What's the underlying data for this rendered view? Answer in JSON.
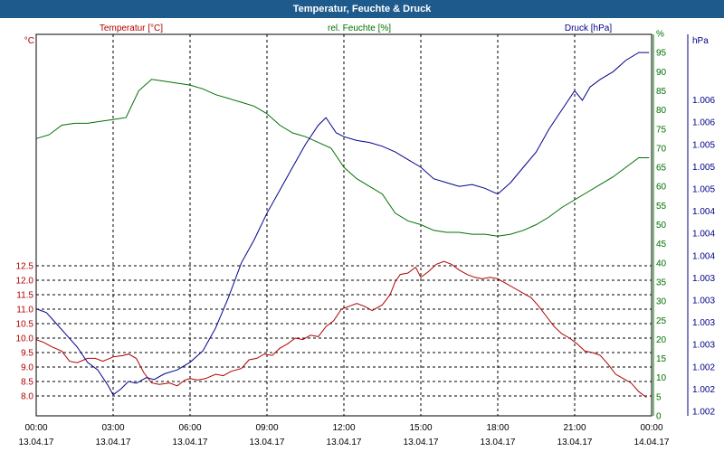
{
  "window": {
    "title": "Temperatur, Feuchte & Druck"
  },
  "colors": {
    "temperature": "#b00000",
    "humidity": "#007000",
    "pressure": "#00008b",
    "grid": "#000000"
  },
  "chart_data": {
    "type": "line",
    "title": "Temperatur, Feuchte & Druck",
    "grid": true,
    "x_ticks": [
      {
        "time": "00:00",
        "date": "13.04.17"
      },
      {
        "time": "03:00",
        "date": "13.04.17"
      },
      {
        "time": "06:00",
        "date": "13.04.17"
      },
      {
        "time": "09:00",
        "date": "13.04.17"
      },
      {
        "time": "12:00",
        "date": "13.04.17"
      },
      {
        "time": "15:00",
        "date": "13.04.17"
      },
      {
        "time": "18:00",
        "date": "13.04.17"
      },
      {
        "time": "21:00",
        "date": "13.04.17"
      },
      {
        "time": "00:00",
        "date": "14.04.17"
      }
    ],
    "xlim_hours": [
      0,
      24
    ],
    "axes": {
      "temperature": {
        "label": "Temperatur [°C]",
        "unit": "°C",
        "ylim": [
          7.75,
          12.95
        ],
        "ticks": [
          "8.0",
          "8.5",
          "9.0",
          "9.5",
          "10.0",
          "10.5",
          "11.0",
          "11.5",
          "12.0",
          "12.5"
        ]
      },
      "humidity": {
        "label": "rel. Feuchte [%]",
        "unit": "%",
        "ylim": [
          0,
          96
        ],
        "ticks": [
          "0",
          "5",
          "10",
          "15",
          "20",
          "25",
          "30",
          "35",
          "40",
          "45",
          "50",
          "55",
          "60",
          "65",
          "70",
          "75",
          "80",
          "85",
          "90",
          "95",
          "%"
        ]
      },
      "pressure": {
        "label": "Druck [hPa]",
        "unit": "hPa",
        "ticks": [
          "1.002",
          "1.002",
          "1.002",
          "1.003",
          "1.003",
          "1.003",
          "1.003",
          "1.004",
          "1.004",
          "1.004",
          "1.005",
          "1.005",
          "1.005",
          "1.006",
          "1.006"
        ]
      }
    },
    "series": [
      {
        "name": "Temperatur [°C]",
        "axis": "temperature",
        "color": "#b00000",
        "points": [
          [
            0,
            9.95
          ],
          [
            0.3,
            9.85
          ],
          [
            0.6,
            9.7
          ],
          [
            1.0,
            9.55
          ],
          [
            1.3,
            9.2
          ],
          [
            1.6,
            9.15
          ],
          [
            2.0,
            9.3
          ],
          [
            2.3,
            9.3
          ],
          [
            2.6,
            9.2
          ],
          [
            3.0,
            9.35
          ],
          [
            3.4,
            9.4
          ],
          [
            3.6,
            9.45
          ],
          [
            3.9,
            9.3
          ],
          [
            4.2,
            8.8
          ],
          [
            4.5,
            8.45
          ],
          [
            4.8,
            8.4
          ],
          [
            5.2,
            8.45
          ],
          [
            5.5,
            8.35
          ],
          [
            5.8,
            8.55
          ],
          [
            6.0,
            8.6
          ],
          [
            6.3,
            8.55
          ],
          [
            6.6,
            8.6
          ],
          [
            7.0,
            8.75
          ],
          [
            7.3,
            8.7
          ],
          [
            7.6,
            8.85
          ],
          [
            8.0,
            8.95
          ],
          [
            8.3,
            9.25
          ],
          [
            8.6,
            9.3
          ],
          [
            8.9,
            9.45
          ],
          [
            9.2,
            9.4
          ],
          [
            9.5,
            9.65
          ],
          [
            9.8,
            9.8
          ],
          [
            10.1,
            10.0
          ],
          [
            10.4,
            9.95
          ],
          [
            10.7,
            10.1
          ],
          [
            11.0,
            10.05
          ],
          [
            11.3,
            10.4
          ],
          [
            11.6,
            10.6
          ],
          [
            11.9,
            11.0
          ],
          [
            12.2,
            11.1
          ],
          [
            12.5,
            11.2
          ],
          [
            12.8,
            11.1
          ],
          [
            13.1,
            10.95
          ],
          [
            13.5,
            11.15
          ],
          [
            13.8,
            11.5
          ],
          [
            14.0,
            11.95
          ],
          [
            14.2,
            12.2
          ],
          [
            14.5,
            12.25
          ],
          [
            14.8,
            12.45
          ],
          [
            15.0,
            12.1
          ],
          [
            15.3,
            12.3
          ],
          [
            15.6,
            12.55
          ],
          [
            15.9,
            12.65
          ],
          [
            16.2,
            12.55
          ],
          [
            16.5,
            12.35
          ],
          [
            16.8,
            12.2
          ],
          [
            17.1,
            12.1
          ],
          [
            17.4,
            12.05
          ],
          [
            17.7,
            12.1
          ],
          [
            18.0,
            12.05
          ],
          [
            18.3,
            11.9
          ],
          [
            18.6,
            11.75
          ],
          [
            19.0,
            11.55
          ],
          [
            19.3,
            11.4
          ],
          [
            19.6,
            11.1
          ],
          [
            19.9,
            10.75
          ],
          [
            20.2,
            10.4
          ],
          [
            20.5,
            10.15
          ],
          [
            20.8,
            10.0
          ],
          [
            21.1,
            9.8
          ],
          [
            21.4,
            9.55
          ],
          [
            21.7,
            9.5
          ],
          [
            22.0,
            9.4
          ],
          [
            22.3,
            9.1
          ],
          [
            22.6,
            8.75
          ],
          [
            22.9,
            8.6
          ],
          [
            23.2,
            8.45
          ],
          [
            23.5,
            8.15
          ],
          [
            23.8,
            7.95
          ]
        ]
      },
      {
        "name": "rel. Feuchte [%]",
        "axis": "humidity",
        "color": "#007000",
        "points": [
          [
            0,
            72.5
          ],
          [
            0.5,
            73.5
          ],
          [
            1.0,
            76
          ],
          [
            1.5,
            76.5
          ],
          [
            2.0,
            76.5
          ],
          [
            2.5,
            77
          ],
          [
            3.0,
            77.5
          ],
          [
            3.5,
            78
          ],
          [
            4.0,
            85
          ],
          [
            4.5,
            88
          ],
          [
            5.0,
            87.5
          ],
          [
            5.5,
            87
          ],
          [
            6.0,
            86.5
          ],
          [
            6.5,
            85.5
          ],
          [
            7.0,
            84
          ],
          [
            7.5,
            83
          ],
          [
            8.0,
            82
          ],
          [
            8.5,
            81
          ],
          [
            9.0,
            79
          ],
          [
            9.5,
            76
          ],
          [
            10.0,
            74
          ],
          [
            10.5,
            73
          ],
          [
            11.0,
            71.5
          ],
          [
            11.5,
            70
          ],
          [
            12.0,
            65
          ],
          [
            12.5,
            62
          ],
          [
            13.0,
            60
          ],
          [
            13.5,
            58
          ],
          [
            14.0,
            53
          ],
          [
            14.5,
            51
          ],
          [
            15.0,
            50
          ],
          [
            15.5,
            48.5
          ],
          [
            16.0,
            48
          ],
          [
            16.5,
            48
          ],
          [
            17.0,
            47.5
          ],
          [
            17.5,
            47.5
          ],
          [
            18.0,
            47
          ],
          [
            18.5,
            47.5
          ],
          [
            19.0,
            48.5
          ],
          [
            19.5,
            50
          ],
          [
            20.0,
            52
          ],
          [
            20.5,
            54.5
          ],
          [
            21.0,
            56.5
          ],
          [
            21.5,
            58.5
          ],
          [
            22.0,
            60.5
          ],
          [
            22.5,
            62.5
          ],
          [
            23.0,
            65
          ],
          [
            23.5,
            67.5
          ],
          [
            23.9,
            67.5
          ]
        ]
      },
      {
        "name": "Druck [hPa]",
        "axis": "pressure",
        "color": "#00008b",
        "points": [
          [
            0,
            28
          ],
          [
            0.4,
            27
          ],
          [
            0.8,
            24
          ],
          [
            1.2,
            21
          ],
          [
            1.6,
            18
          ],
          [
            2.0,
            14
          ],
          [
            2.4,
            12
          ],
          [
            2.8,
            8
          ],
          [
            3.0,
            5.5
          ],
          [
            3.3,
            7
          ],
          [
            3.6,
            9
          ],
          [
            3.9,
            8.5
          ],
          [
            4.3,
            10
          ],
          [
            4.6,
            9.5
          ],
          [
            5.0,
            11
          ],
          [
            5.5,
            12
          ],
          [
            6.0,
            14
          ],
          [
            6.5,
            17
          ],
          [
            7.0,
            23
          ],
          [
            7.5,
            31
          ],
          [
            8.0,
            40
          ],
          [
            8.5,
            46
          ],
          [
            9.0,
            53
          ],
          [
            9.5,
            59
          ],
          [
            10.0,
            65
          ],
          [
            10.5,
            71
          ],
          [
            11.0,
            76
          ],
          [
            11.3,
            78
          ],
          [
            11.7,
            74
          ],
          [
            12.0,
            73
          ],
          [
            12.5,
            72
          ],
          [
            13.0,
            71.5
          ],
          [
            13.5,
            70.5
          ],
          [
            14.0,
            69
          ],
          [
            14.5,
            67
          ],
          [
            15.0,
            65
          ],
          [
            15.5,
            62
          ],
          [
            16.0,
            61
          ],
          [
            16.5,
            60
          ],
          [
            17.0,
            60.5
          ],
          [
            17.5,
            59.5
          ],
          [
            18.0,
            58
          ],
          [
            18.5,
            61
          ],
          [
            19.0,
            65
          ],
          [
            19.5,
            69
          ],
          [
            20.0,
            75
          ],
          [
            20.5,
            80
          ],
          [
            21.0,
            85
          ],
          [
            21.3,
            82.5
          ],
          [
            21.6,
            86
          ],
          [
            22.0,
            88
          ],
          [
            22.5,
            90
          ],
          [
            23.0,
            93
          ],
          [
            23.5,
            95
          ],
          [
            23.9,
            95
          ]
        ]
      }
    ]
  }
}
